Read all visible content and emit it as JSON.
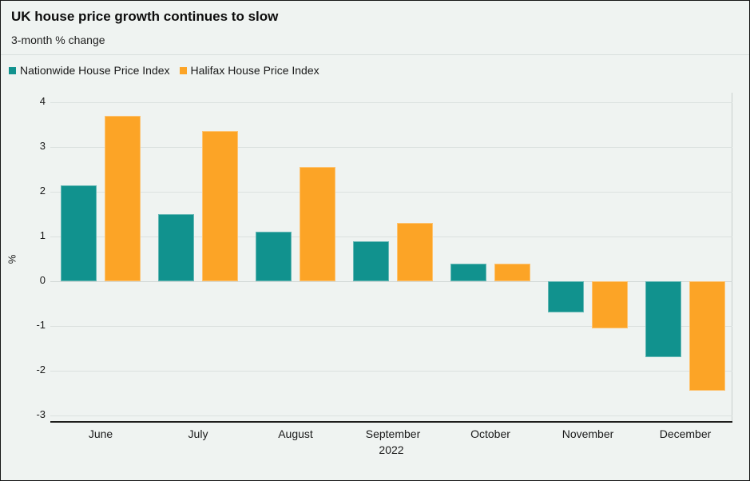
{
  "header": {
    "title": "UK house price growth continues to slow",
    "subtitle": "3-month % change"
  },
  "legend": [
    {
      "label": "Nationwide House Price Index",
      "color": "#11928e"
    },
    {
      "label": "Halifax House Price Index",
      "color": "#fca426"
    }
  ],
  "chart_data": {
    "type": "bar",
    "title": "UK house price growth continues to slow",
    "subtitle": "3-month % change",
    "xlabel": "2022",
    "ylabel": "%",
    "categories": [
      "June",
      "July",
      "August",
      "September",
      "October",
      "November",
      "December"
    ],
    "series": [
      {
        "name": "Nationwide House Price Index",
        "color": "#11928e",
        "values": [
          2.15,
          1.5,
          1.1,
          0.9,
          0.4,
          -0.7,
          -1.7
        ]
      },
      {
        "name": "Halifax House Price Index",
        "color": "#fca426",
        "values": [
          3.7,
          3.35,
          2.55,
          1.3,
          0.4,
          -1.05,
          -2.45
        ]
      }
    ],
    "y_ticks": [
      4,
      3,
      2,
      1,
      0,
      -1,
      -2,
      -3
    ],
    "ylim": [
      -3.14,
      4.21
    ],
    "grid": true,
    "legend_position": "top-left",
    "colors": {
      "background": "#eff3f1",
      "gridline": "#dbe1df",
      "axis_line": "#1d1d1b",
      "text": "#1a1a1a"
    }
  }
}
